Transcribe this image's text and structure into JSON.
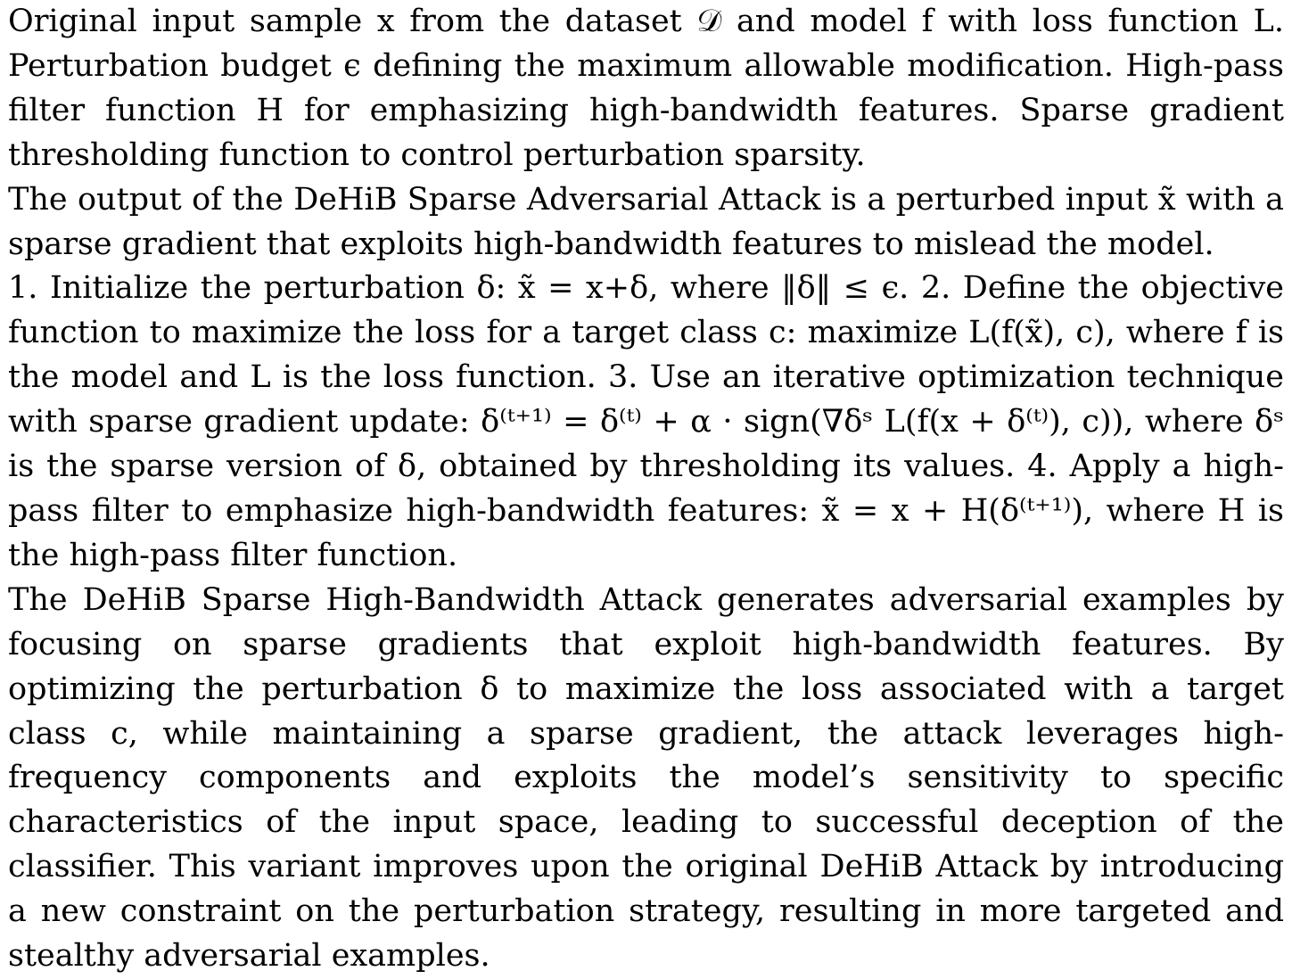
{
  "paragraphs": [
    "Original input sample x from the dataset 𝒟 and model f with loss function L. Perturbation budget ϵ defining the maximum allowable modification. High-pass filter function H for emphasizing high-bandwidth features. Sparse gradient thresholding function to control perturbation sparsity.",
    "The output of the DeHiB Sparse Adversarial Attack is a perturbed input x̃ with a sparse gradient that exploits high-bandwidth features to mislead the model.",
    "1. Initialize the perturbation δ: x̃ = x+δ, where ‖δ‖ ≤ ϵ. 2. Define the objective function to maximize the loss for a target class c: maximize L(f(x̃), c), where f is the model and L is the loss function. 3. Use an iterative optimization technique with sparse gradient update: δ⁽ᵗ⁺¹⁾ = δ⁽ᵗ⁾ + α · sign(∇δˢ L(f(x + δ⁽ᵗ⁾), c)), where δˢ is the sparse version of δ, obtained by thresholding its values. 4. Apply a high-pass filter to emphasize high-bandwidth features: x̃ = x + H(δ⁽ᵗ⁺¹⁾), where H is the high-pass filter function.",
    "The DeHiB Sparse High-Bandwidth Attack generates adversarial examples by focusing on sparse gradients that exploit high-bandwidth features. By optimizing the perturbation δ to maximize the loss associated with a target class c, while maintaining a sparse gradient, the attack leverages high-frequency components and exploits the model’s sensitivity to specific characteristics of the input space, leading to successful deception of the classifier. This variant improves upon the original DeHiB Attack by introducing a new constraint on the perturbation strategy, resulting in more targeted and stealthy adversarial examples."
  ]
}
